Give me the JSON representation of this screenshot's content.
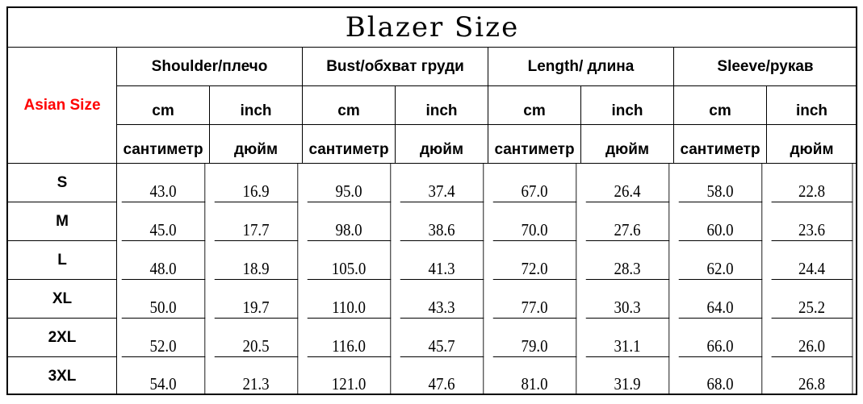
{
  "title": "Blazer Size",
  "size_header": "Asian Size",
  "measures": [
    "Shoulder/плечо",
    "Bust/обхват груди",
    "Length/ длина",
    "Sleeve/рукав"
  ],
  "units": {
    "cm": "cm",
    "inch": "inch",
    "cm_ru": "сантиметр",
    "inch_ru": "дюйм"
  },
  "rows": [
    {
      "size": "S",
      "values": [
        "43.0",
        "16.9",
        "95.0",
        "37.4",
        "67.0",
        "26.4",
        "58.0",
        "22.8"
      ]
    },
    {
      "size": "M",
      "values": [
        "45.0",
        "17.7",
        "98.0",
        "38.6",
        "70.0",
        "27.6",
        "60.0",
        "23.6"
      ]
    },
    {
      "size": "L",
      "values": [
        "48.0",
        "18.9",
        "105.0",
        "41.3",
        "72.0",
        "28.3",
        "62.0",
        "24.4"
      ]
    },
    {
      "size": "XL",
      "values": [
        "50.0",
        "19.7",
        "110.0",
        "43.3",
        "77.0",
        "30.3",
        "64.0",
        "25.2"
      ]
    },
    {
      "size": "2XL",
      "values": [
        "52.0",
        "20.5",
        "116.0",
        "45.7",
        "79.0",
        "31.1",
        "66.0",
        "26.0"
      ]
    },
    {
      "size": "3XL",
      "values": [
        "54.0",
        "21.3",
        "121.0",
        "47.6",
        "81.0",
        "31.9",
        "68.0",
        "26.8"
      ]
    }
  ]
}
